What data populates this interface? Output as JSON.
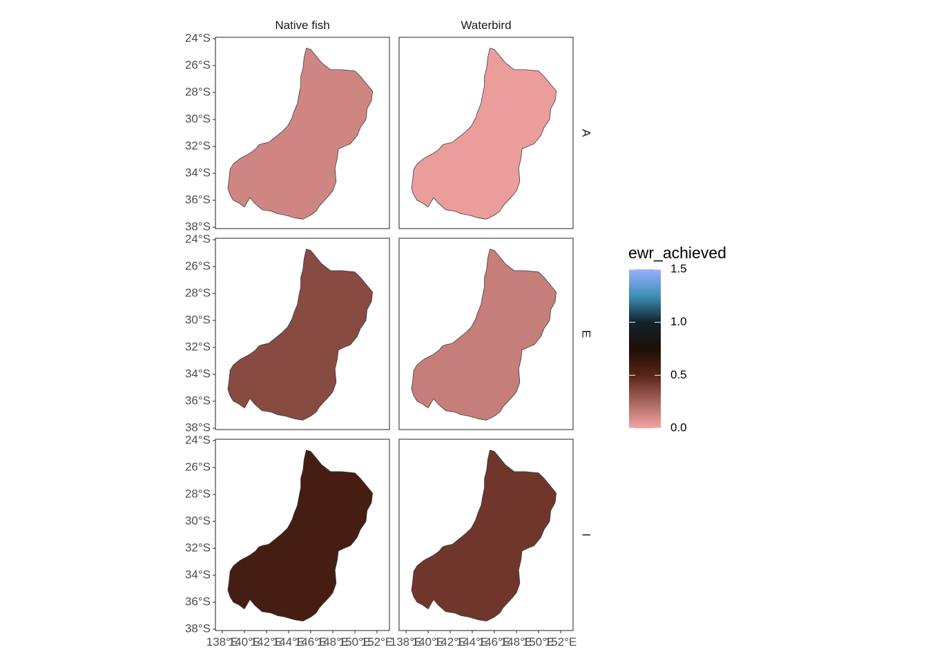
{
  "chart_data": {
    "type": "choropleth-map",
    "legend": {
      "title": "ewr_achieved",
      "placement": "right",
      "range": [
        0,
        1.5
      ],
      "breaks": [
        0.0,
        0.5,
        1.0,
        1.5
      ],
      "break_labels": [
        "0.0",
        "0.5",
        "1.0",
        "1.5"
      ],
      "gradient": [
        {
          "value": 0.0,
          "color": "#f4a5a5"
        },
        {
          "value": 0.5,
          "color": "#5a2417"
        },
        {
          "value": 0.75,
          "color": "#1c0f06"
        },
        {
          "value": 1.0,
          "color": "#12232c"
        },
        {
          "value": 1.25,
          "color": "#3e8fb8"
        },
        {
          "value": 1.5,
          "color": "#9aafff"
        }
      ]
    },
    "facet_columns": [
      "Native fish",
      "Waterbird"
    ],
    "facet_rows": [
      "A",
      "E",
      "I"
    ],
    "panels": [
      {
        "row": "A",
        "column": "Native fish",
        "value": 0.12
      },
      {
        "row": "A",
        "column": "Waterbird",
        "value": 0.03
      },
      {
        "row": "E",
        "column": "Native fish",
        "value": 0.35
      },
      {
        "row": "E",
        "column": "Waterbird",
        "value": 0.15
      },
      {
        "row": "I",
        "column": "Native fish",
        "value": 0.58
      },
      {
        "row": "I",
        "column": "Waterbird",
        "value": 0.43
      }
    ],
    "x_axis": {
      "range": [
        137.5,
        153.0
      ],
      "ticks": [
        138,
        140,
        142,
        144,
        146,
        148,
        150,
        152
      ],
      "tick_labels": [
        "138°E",
        "140°E",
        "142°E",
        "144°E",
        "146°E",
        "148°E",
        "150°E",
        "152°E"
      ]
    },
    "y_axis": {
      "range": [
        -38,
        -24
      ],
      "ticks": [
        -24,
        -26,
        -28,
        -30,
        -32,
        -34,
        -36,
        -38
      ],
      "tick_labels": [
        "24°S",
        "26°S",
        "28°S",
        "30°S",
        "32°S",
        "34°S",
        "36°S",
        "38°S"
      ]
    },
    "basin_outline_lonlat": [
      [
        145.6,
        -24.7
      ],
      [
        146.0,
        -24.8
      ],
      [
        146.6,
        -25.4
      ],
      [
        147.0,
        -25.8
      ],
      [
        147.8,
        -26.3
      ],
      [
        148.8,
        -26.3
      ],
      [
        150.0,
        -26.4
      ],
      [
        150.5,
        -26.8
      ],
      [
        151.2,
        -27.5
      ],
      [
        151.6,
        -27.9
      ],
      [
        151.5,
        -28.6
      ],
      [
        151.1,
        -29.2
      ],
      [
        151.0,
        -30.0
      ],
      [
        150.5,
        -30.6
      ],
      [
        150.2,
        -31.2
      ],
      [
        149.6,
        -31.8
      ],
      [
        149.0,
        -32.0
      ],
      [
        148.5,
        -32.2
      ],
      [
        148.4,
        -32.9
      ],
      [
        148.2,
        -33.6
      ],
      [
        148.3,
        -34.6
      ],
      [
        148.0,
        -35.3
      ],
      [
        147.7,
        -35.6
      ],
      [
        146.8,
        -36.4
      ],
      [
        146.5,
        -36.8
      ],
      [
        146.0,
        -37.1
      ],
      [
        145.3,
        -37.4
      ],
      [
        144.5,
        -37.3
      ],
      [
        143.7,
        -37.1
      ],
      [
        143.0,
        -37.0
      ],
      [
        142.4,
        -36.8
      ],
      [
        141.6,
        -36.7
      ],
      [
        140.9,
        -36.2
      ],
      [
        140.5,
        -35.8
      ],
      [
        140.0,
        -36.5
      ],
      [
        139.5,
        -36.2
      ],
      [
        139.0,
        -36.0
      ],
      [
        138.7,
        -35.6
      ],
      [
        138.5,
        -35.1
      ],
      [
        138.6,
        -34.5
      ],
      [
        138.7,
        -33.7
      ],
      [
        139.0,
        -33.3
      ],
      [
        139.6,
        -32.9
      ],
      [
        140.5,
        -32.5
      ],
      [
        141.0,
        -32.2
      ],
      [
        141.3,
        -31.9
      ],
      [
        141.6,
        -31.8
      ],
      [
        142.2,
        -31.7
      ],
      [
        142.8,
        -31.3
      ],
      [
        143.4,
        -30.9
      ],
      [
        143.9,
        -30.5
      ],
      [
        144.3,
        -29.9
      ],
      [
        144.5,
        -29.4
      ],
      [
        144.8,
        -28.8
      ],
      [
        144.9,
        -28.3
      ],
      [
        145.1,
        -27.5
      ],
      [
        145.1,
        -26.8
      ],
      [
        145.3,
        -26.2
      ],
      [
        145.4,
        -25.4
      ]
    ]
  }
}
